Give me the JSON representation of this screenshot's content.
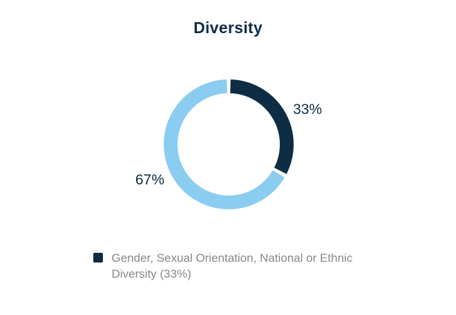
{
  "chart_data": {
    "type": "pie",
    "variant": "donut",
    "title": "Diversity",
    "slices": [
      {
        "label": "33%",
        "value": 33,
        "color": "#0e2d44"
      },
      {
        "label": "67%",
        "value": 67,
        "color": "#8bcdf0"
      }
    ],
    "legend_position": "bottom",
    "legend": [
      {
        "swatch_color": "#0e2d44",
        "text": "Gender, Sexual Orientation, National or Ethnic Diversity (33%)"
      }
    ],
    "colors": {
      "title": "#0e2d44",
      "slice_label": "#0e2d44",
      "legend_text": "#85878b",
      "background": "#ffffff"
    }
  }
}
